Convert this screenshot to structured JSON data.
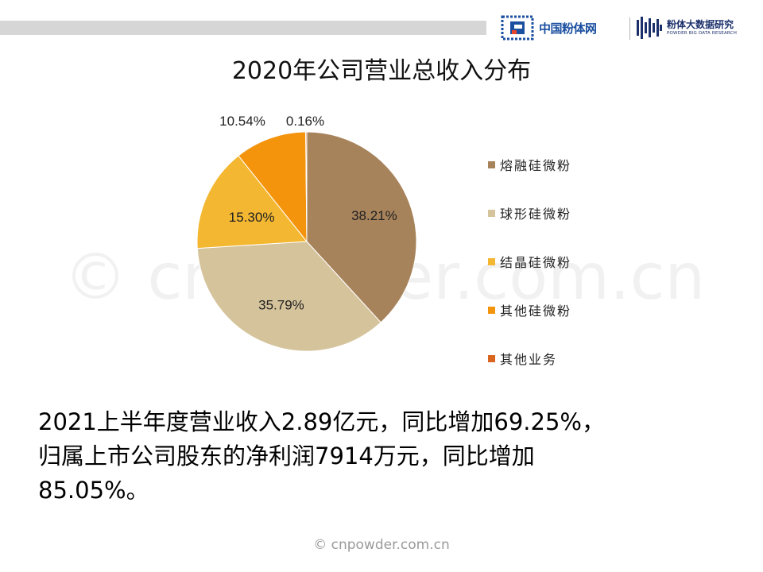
{
  "header": {
    "logo_left_text": "中国粉体网",
    "logo_right_cn": "粉体大数据研究",
    "logo_right_en": "POWDER BIG DATA RESEARCH"
  },
  "watermark": "© cnpowder.com.cn",
  "chart_data": {
    "type": "pie",
    "title": "2020年公司营业总收入分布",
    "categories": [
      "熔融硅微粉",
      "球形硅微粉",
      "结晶硅微粉",
      "其他硅微粉",
      "其他业务"
    ],
    "values": [
      38.21,
      35.79,
      15.3,
      10.54,
      0.16
    ],
    "labels": [
      "38.21%",
      "35.79%",
      "15.30%",
      "10.54%",
      "0.16%"
    ],
    "colors": [
      "#a7835b",
      "#d5c39b",
      "#f3b731",
      "#f4940c",
      "#d9651e"
    ],
    "legend_position": "right"
  },
  "summary": {
    "line1": "2021上半年度营业收入2.89亿元，同比增加69.25%，",
    "line2": "归属上市公司股东的净利润7914万元，同比增加",
    "line3": "85.05%。"
  },
  "footer": {
    "source": "© cnpowder.com.cn"
  }
}
